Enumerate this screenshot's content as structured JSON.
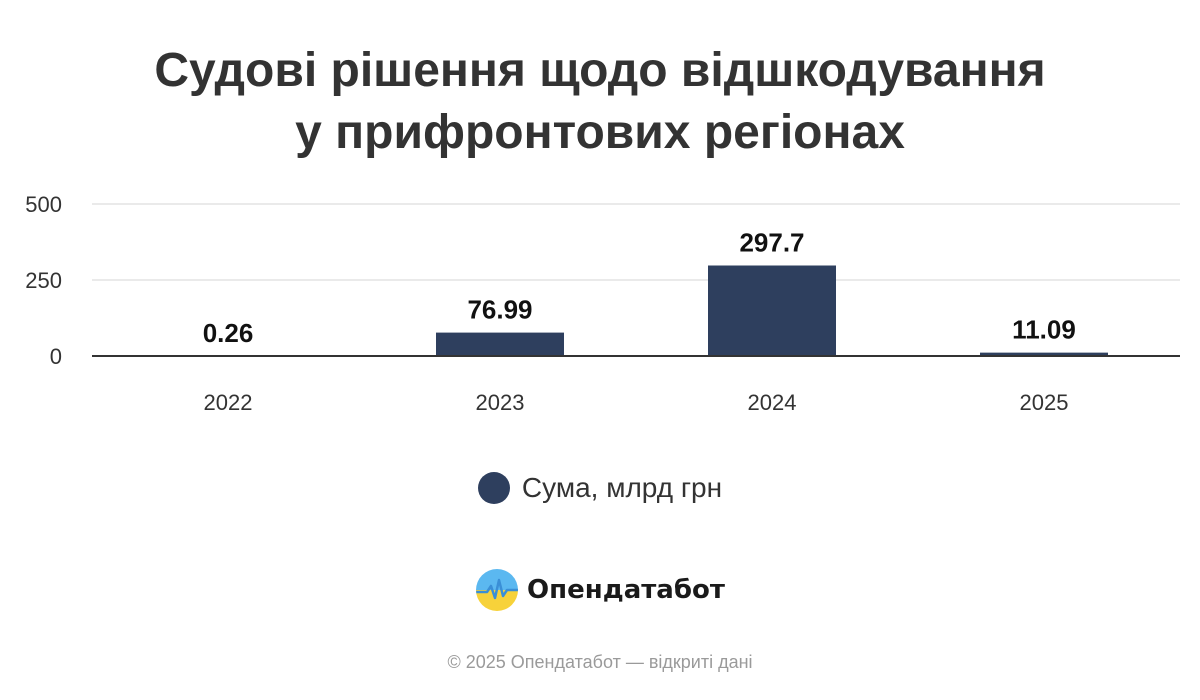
{
  "chart_data": {
    "type": "bar",
    "title_lines": [
      "Судові рішення щодо відшкодування",
      "у прифронтових регіонах"
    ],
    "categories": [
      "2022",
      "2023",
      "2024",
      "2025"
    ],
    "series": [
      {
        "name": "Сума, млрд грн",
        "values": [
          0.26,
          76.99,
          297.7,
          11.09
        ],
        "labels": [
          "0.26",
          "76.99",
          "297.7",
          "11.09"
        ],
        "color": "#2e3f5e"
      }
    ],
    "yticks": [
      "0",
      "250",
      "500"
    ],
    "ylim": [
      0,
      500
    ],
    "grid": true,
    "legend_position": "bottom-center"
  },
  "branding": {
    "logo_icon": "opendatabot-logo-icon",
    "name": "Опендатабот"
  },
  "footer": {
    "copyright": "© 2025 Опендатабот — відкриті дані"
  }
}
